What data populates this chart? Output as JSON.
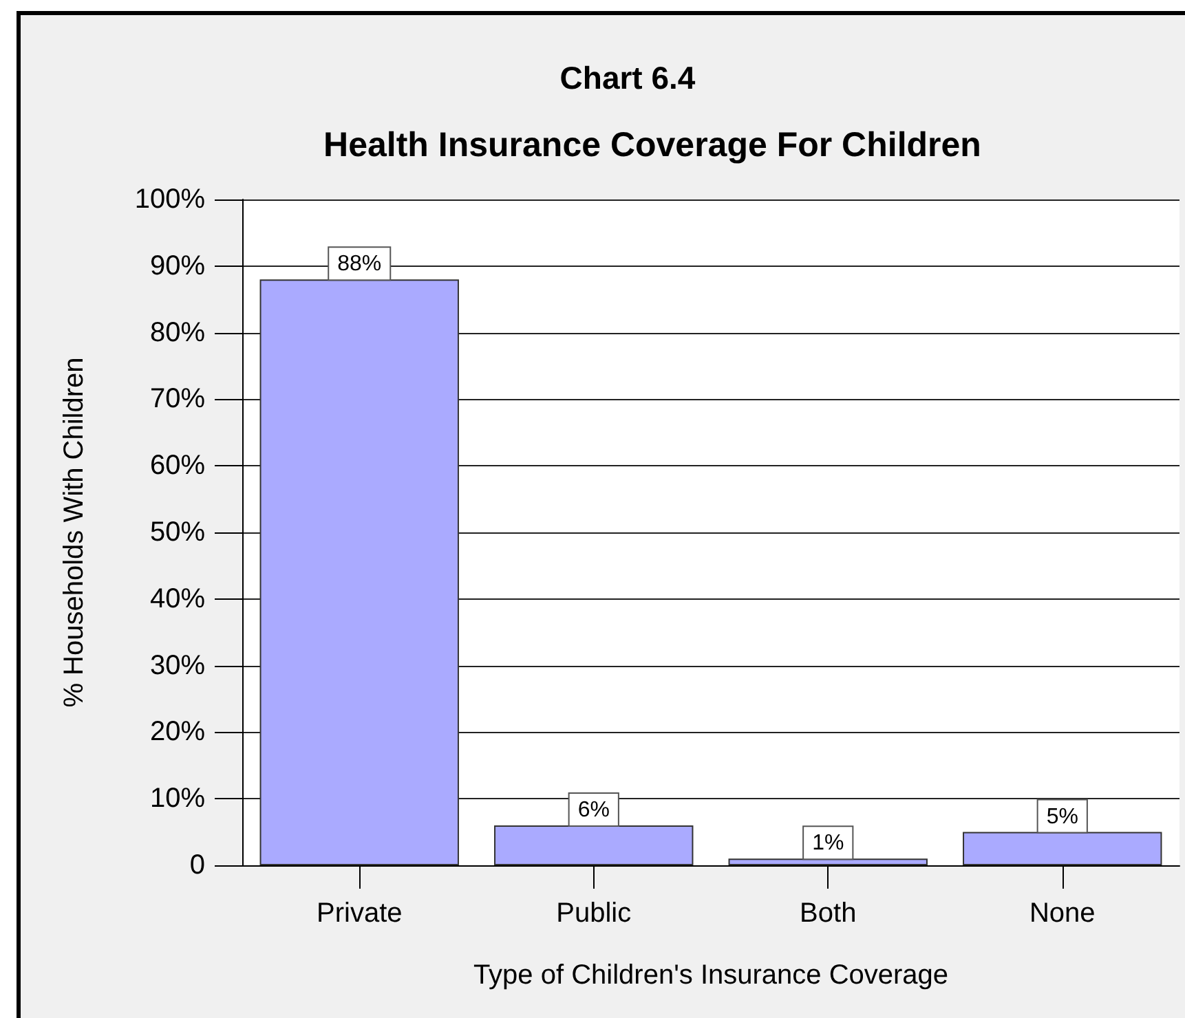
{
  "chart_data": {
    "type": "bar",
    "title": "Chart 6.4",
    "subtitle": "Health Insurance Coverage For Children",
    "xlabel": "Type of Children's Insurance Coverage",
    "ylabel": "% Households With Children",
    "categories": [
      "Private",
      "Public",
      "Both",
      "None"
    ],
    "values": [
      88,
      6,
      1,
      5
    ],
    "value_labels": [
      "88%",
      "6%",
      "1%",
      "5%"
    ],
    "color": "#aaaaff",
    "ylim": [
      0,
      100
    ],
    "yticks": [
      0,
      {
        "value": 10,
        "label": "10%"
      },
      {
        "value": 20,
        "label": "20%"
      },
      {
        "value": 30,
        "label": "30%"
      },
      {
        "value": 40,
        "label": "40%"
      },
      {
        "value": 50,
        "label": "50%"
      },
      {
        "value": 60,
        "label": "60%"
      },
      {
        "value": 70,
        "label": "70%"
      },
      {
        "value": 80,
        "label": "80%"
      },
      {
        "value": 90,
        "label": "90%"
      },
      {
        "value": 100,
        "label": "100%"
      }
    ],
    "grid": "y"
  }
}
